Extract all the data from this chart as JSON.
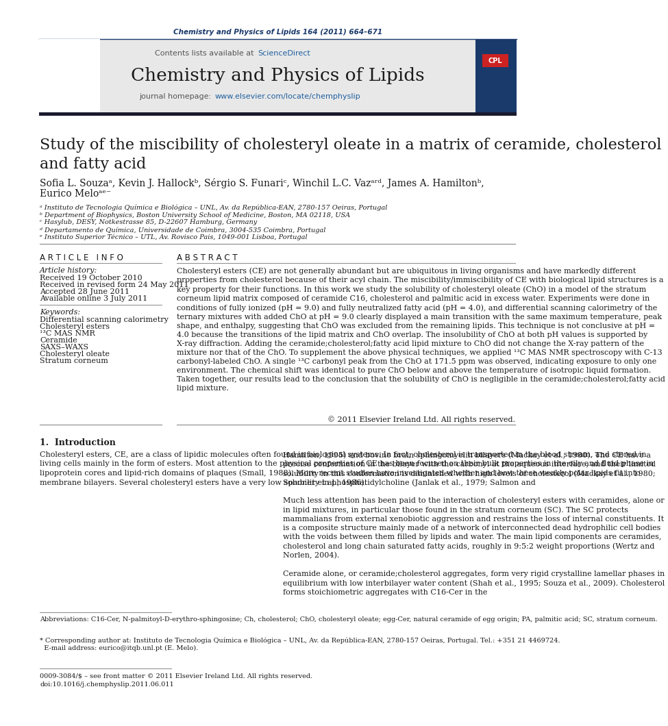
{
  "page_width": 10.21,
  "page_height": 13.51,
  "bg_color": "#ffffff",
  "header_journal_ref": "Chemistry and Physics of Lipids 164 (2011) 664–671",
  "header_journal_ref_color": "#1a3a6b",
  "journal_name": "Chemistry and Physics of Lipids",
  "contents_text": "Contents lists available at ",
  "sciencedirect_text": "ScienceDirect",
  "sciencedirect_color": "#2060a0",
  "journal_homepage_text": "journal homepage: ",
  "journal_url": "www.elsevier.com/locate/chemphyslip",
  "journal_url_color": "#2060a0",
  "header_bar_color": "#1a1a2e",
  "header_bg_color": "#e8e8e8",
  "article_title": "Study of the miscibility of cholesteryl oleate in a matrix of ceramide, cholesterol\nand fatty acid",
  "authors_line1": "Sofia L. Souzaᵃ, Kevin J. Hallockᵇ, Sérgio S. Funariᶜ, Winchil L.C. Vazᵃʳᵈ, James A. Hamiltonᵇ,",
  "authors_line2": "Eurico Meloᵃᵉ⁻",
  "affil_a": "ᵃ Instituto de Tecnologia Química e Biológica – UNL, Av. da República-EAN, 2780-157 Oeiras, Portugal",
  "affil_b": "ᵇ Department of Biophysics, Boston University School of Medicine, Boston, MA 02118, USA",
  "affil_c": "ᶜ Hasylub, DESY, Notkestrasse 85, D-22607 Hamburg, Germany",
  "affil_d": "ᵈ Departamento de Química, Universidade de Coimbra, 3004-535 Coimbra, Portugal",
  "affil_e": "ᵉ Instituto Superior Técnico – UTL, Av. Rovisco Pais, 1049-001 Lisboa, Portugal",
  "article_info_header": "A R T I C L E   I N F O",
  "abstract_header": "A B S T R A C T",
  "article_history_label": "Article history:",
  "received": "Received 19 October 2010",
  "received_revised": "Received in revised form 24 May 2011",
  "accepted": "Accepted 28 June 2011",
  "available": "Available online 3 July 2011",
  "keywords_label": "Keywords:",
  "keywords": [
    "Differential scanning calorimetry",
    "Cholesteryl esters",
    "¹³C MAS NMR",
    "Ceramide",
    "SAXS–WAXS",
    "Cholesteryl oleate",
    "Stratum corneum"
  ],
  "abstract_text": "Cholesteryl esters (CE) are not generally abundant but are ubiquitous in living organisms and have markedly different properties from cholesterol because of their acyl chain. The miscibility/immiscibility of CE with biological lipid structures is a key property for their functions. In this work we study the solubility of cholesteryl oleate (ChO) in a model of the stratum corneum lipid matrix composed of ceramide C16, cholesterol and palmitic acid in excess water. Experiments were done in conditions of fully ionized (pH = 9.0) and fully neutralized fatty acid (pH = 4.0), and differential scanning calorimetry of the ternary mixtures with added ChO at pH = 9.0 clearly displayed a main transition with the same maximum temperature, peak shape, and enthalpy, suggesting that ChO was excluded from the remaining lipids. This technique is not conclusive at pH = 4.0 because the transitions of the lipid matrix and ChO overlap. The insolubility of ChO at both pH values is supported by X-ray diffraction. Adding the ceramide;cholesterol;fatty acid lipid mixture to ChO did not change the X-ray pattern of the mixture nor that of the ChO. To supplement the above physical techniques, we applied ¹³C MAS NMR spectroscopy with C-13 carbonyl-labeled ChO. A single ¹³C carbonyl peak from the ChO at 171.5 ppm was observed, indicating exposure to only one environment. The chemical shift was identical to pure ChO below and above the temperature of isotropic liquid formation. Taken together, our results lead to the conclusion that the solubility of ChO is negligible in the ceramide;cholesterol;fatty acid lipid mixture.",
  "copyright": "© 2011 Elsevier Ireland Ltd. All rights reserved.",
  "section1_header": "1.  Introduction",
  "intro_text_left": "Cholesteryl esters, CE, are a class of lipidic molecules often found in biological systems. In fact, cholesterol is transported in the blood stream, and stored in living cells mainly in the form of esters. Most attention to the physical properties of CE has been focused on their bulk properties in the oily and fluid phase in lipoprotein cores and lipid-rich domains of plaques (Small, 1988). More recent studies have investigated whether and how these weakly polar lipids fit into membrane bilayers. Several cholesteryl esters have a very low solubility in phosphatidylcholine (Janlak et al., 1979; Salmon and",
  "intro_text_right": "Hamilton, 1995) and bovine brain sphingomyelin bilayers (Mackay et al., 1980). The CE have a precise conformation in the bilayer with the carbonyl at the aqueous interface, and their limited solubility in this conformation is diminished with high levels of cholesterol (Mackay et al., 1980; Spooner et al., 1986).\n\nMuch less attention has been paid to the interaction of cholesteryl esters with ceramides, alone or in lipid mixtures, in particular those found in the stratum corneum (SC). The SC protects mammalians from external xenobiotic aggression and restrains the loss of internal constituents. It is a composite structure mainly made of a network of interconnected dead hydrophilic cell bodies with the voids between them filled by lipids and water. The main lipid components are ceramides, cholesterol and long chain saturated fatty acids, roughly in 9:5:2 weight proportions (Wertz and Norlen, 2004).\n\nCeramide alone, or ceramide;cholesterol aggregates, form very rigid crystalline lamellar phases in equilibrium with low interbilayer water content (Shah et al., 1995; Souza et al., 2009). Cholesterol forms stoichiometric aggregates with C16-Cer in the",
  "footnote_abbrev": "Abbreviations: C16-Cer, N-palmitoyl-D-erythro-sphingosine; Ch, cholesterol; ChO, cholesteryl oleate; egg-Cer, natural ceramide of egg origin; PA, palmitic acid; SC, stratum corneum.",
  "footnote_corresponding": "* Corresponding author at: Instituto de Tecnologia Química e Biológica – UNL, Av. da República-EAN, 2780-157 Oeiras, Portugal. Tel.: +351 21 4469724.\n  E-mail address: eurico@itqb.unl.pt (E. Melo).",
  "footnote_issn": "0009-3084/$ – see front matter © 2011 Elsevier Ireland Ltd. All rights reserved.\ndoi:10.1016/j.chemphyslip.2011.06.011",
  "link_color": "#2060a0",
  "text_color": "#000000"
}
